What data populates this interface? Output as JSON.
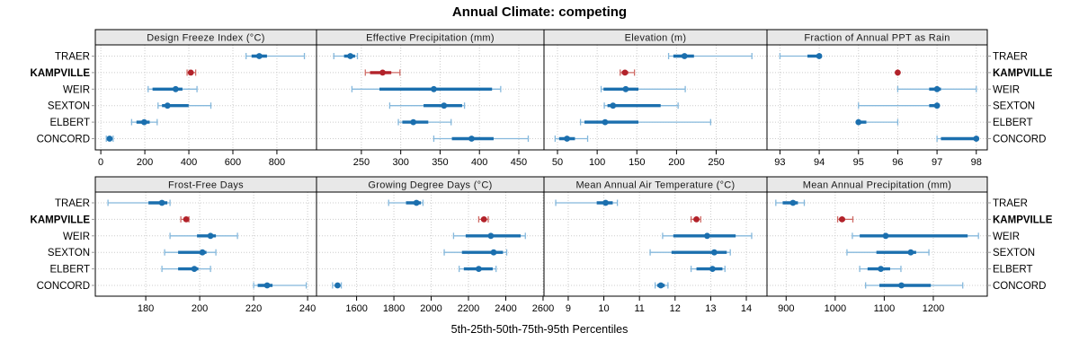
{
  "title": "Annual Climate: competing",
  "caption": "5th-25th-50th-75th-95th Percentiles",
  "percentile_labels": [
    "5th",
    "25th",
    "50th",
    "75th",
    "95th"
  ],
  "stations": [
    {
      "label": "TRAER",
      "highlight": false
    },
    {
      "label": "KAMPVILLE",
      "highlight": true
    },
    {
      "label": "WEIR",
      "highlight": false
    },
    {
      "label": "SEXTON",
      "highlight": false
    },
    {
      "label": "ELBERT",
      "highlight": false
    },
    {
      "label": "CONCORD",
      "highlight": false
    }
  ],
  "colors": {
    "normal": "#1b6fae",
    "normal_light": "#85b8dc",
    "highlight": "#b2222a",
    "highlight_light": "#cf6b66",
    "strip_bg": "#e8e8e8",
    "grid": "#cccccc",
    "border": "#000000"
  },
  "chart_data": [
    {
      "id": "design-freeze-index",
      "type": "scatter",
      "style": "percentile-intervals",
      "title": "Design Freeze Index (°C)",
      "row": 0,
      "col": 0,
      "xlim": [
        -25,
        980
      ],
      "ticks": [
        0,
        200,
        400,
        600,
        800
      ],
      "series": [
        {
          "name": "TRAER",
          "values": [
            660,
            685,
            720,
            755,
            925
          ]
        },
        {
          "name": "KAMPVILLE",
          "values": [
            392,
            400,
            409,
            419,
            431
          ]
        },
        {
          "name": "WEIR",
          "values": [
            215,
            235,
            340,
            371,
            437
          ]
        },
        {
          "name": "SEXTON",
          "values": [
            260,
            278,
            303,
            399,
            500
          ]
        },
        {
          "name": "ELBERT",
          "values": [
            140,
            162,
            197,
            222,
            256
          ]
        },
        {
          "name": "CONCORD",
          "values": [
            25,
            33,
            40,
            48,
            56
          ]
        }
      ]
    },
    {
      "id": "effective-precipitation",
      "type": "scatter",
      "style": "percentile-intervals",
      "title": "Effective Precipitation (mm)",
      "row": 0,
      "col": 1,
      "xlim": [
        193,
        482
      ],
      "ticks": [
        250,
        300,
        350,
        400,
        450
      ],
      "series": [
        {
          "name": "TRAER",
          "values": [
            215,
            228,
            236,
            242,
            245
          ]
        },
        {
          "name": "KAMPVILLE",
          "values": [
            255,
            261,
            277,
            288,
            299
          ]
        },
        {
          "name": "WEIR",
          "values": [
            238,
            273,
            342,
            416,
            427
          ]
        },
        {
          "name": "SEXTON",
          "values": [
            286,
            329,
            355,
            378,
            381
          ]
        },
        {
          "name": "ELBERT",
          "values": [
            297,
            302,
            316,
            335,
            364
          ]
        },
        {
          "name": "CONCORD",
          "values": [
            342,
            365,
            390,
            418,
            462
          ]
        }
      ]
    },
    {
      "id": "elevation",
      "type": "scatter",
      "style": "percentile-intervals",
      "title": "Elevation (m)",
      "row": 0,
      "col": 2,
      "xlim": [
        33,
        314
      ],
      "ticks": [
        50,
        100,
        150,
        200,
        250
      ],
      "series": [
        {
          "name": "TRAER",
          "values": [
            190,
            196,
            210,
            222,
            295
          ]
        },
        {
          "name": "KAMPVILLE",
          "values": [
            129,
            131,
            135,
            139,
            147
          ]
        },
        {
          "name": "WEIR",
          "values": [
            105,
            108,
            136,
            152,
            211
          ]
        },
        {
          "name": "SEXTON",
          "values": [
            109,
            113,
            120,
            180,
            202
          ]
        },
        {
          "name": "ELBERT",
          "values": [
            79,
            84,
            110,
            152,
            243
          ]
        },
        {
          "name": "CONCORD",
          "values": [
            47,
            52,
            62,
            72,
            88
          ]
        }
      ]
    },
    {
      "id": "fraction-annual-ppt-rain",
      "type": "scatter",
      "style": "percentile-intervals",
      "title": "Fraction of Annual PPT as Rain",
      "row": 0,
      "col": 3,
      "xlim": [
        92.67,
        98.28
      ],
      "ticks": [
        93,
        94,
        95,
        96,
        97,
        98
      ],
      "series": [
        {
          "name": "TRAER",
          "values": [
            93,
            93.7,
            94,
            94,
            94
          ]
        },
        {
          "name": "KAMPVILLE",
          "values": [
            96,
            96,
            96,
            96,
            96
          ]
        },
        {
          "name": "WEIR",
          "values": [
            96,
            96.8,
            97,
            97.1,
            98
          ]
        },
        {
          "name": "SEXTON",
          "values": [
            95,
            96.8,
            97,
            97,
            97
          ]
        },
        {
          "name": "ELBERT",
          "values": [
            95,
            95,
            95,
            95.2,
            96
          ]
        },
        {
          "name": "CONCORD",
          "values": [
            97,
            97.1,
            98,
            98,
            98
          ]
        }
      ]
    },
    {
      "id": "frost-free-days",
      "type": "scatter",
      "style": "percentile-intervals",
      "title": "Frost-Free Days",
      "row": 1,
      "col": 0,
      "xlim": [
        161.3,
        243.3
      ],
      "ticks": [
        180,
        200,
        220,
        240
      ],
      "series": [
        {
          "name": "TRAER",
          "values": [
            166,
            181,
            186,
            188,
            189
          ]
        },
        {
          "name": "KAMPVILLE",
          "values": [
            193,
            194,
            195,
            195.5,
            196
          ]
        },
        {
          "name": "WEIR",
          "values": [
            189,
            199,
            204,
            206,
            214
          ]
        },
        {
          "name": "SEXTON",
          "values": [
            187,
            192,
            201,
            202.5,
            206
          ]
        },
        {
          "name": "ELBERT",
          "values": [
            186,
            192,
            198,
            199.5,
            204
          ]
        },
        {
          "name": "CONCORD",
          "values": [
            220,
            221.5,
            225,
            227,
            239.5
          ]
        }
      ]
    },
    {
      "id": "growing-degree-days",
      "type": "scatter",
      "style": "percentile-intervals",
      "title": "Growing Degree Days (°C)",
      "row": 1,
      "col": 1,
      "xlim": [
        1385,
        2605
      ],
      "ticks": [
        1600,
        1800,
        2000,
        2200,
        2400,
        2600
      ],
      "series": [
        {
          "name": "TRAER",
          "values": [
            1772,
            1865,
            1921,
            1945,
            1956
          ]
        },
        {
          "name": "KAMPVILLE",
          "values": [
            2255,
            2268,
            2283,
            2295,
            2306
          ]
        },
        {
          "name": "WEIR",
          "values": [
            2120,
            2185,
            2320,
            2480,
            2505
          ]
        },
        {
          "name": "SEXTON",
          "values": [
            2070,
            2165,
            2335,
            2385,
            2405
          ]
        },
        {
          "name": "ELBERT",
          "values": [
            2150,
            2175,
            2255,
            2330,
            2348
          ]
        },
        {
          "name": "CONCORD",
          "values": [
            1471,
            1485,
            1498,
            1508,
            1518
          ]
        }
      ]
    },
    {
      "id": "mean-annual-air-temperature",
      "type": "scatter",
      "style": "percentile-intervals",
      "title": "Mean Annual Air Temperature (°C)",
      "row": 1,
      "col": 2,
      "xlim": [
        8.32,
        14.58
      ],
      "ticks": [
        9,
        10,
        11,
        12,
        13,
        14
      ],
      "series": [
        {
          "name": "TRAER",
          "values": [
            8.65,
            9.8,
            10.05,
            10.25,
            10.38
          ]
        },
        {
          "name": "KAMPVILLE",
          "values": [
            12.45,
            12.52,
            12.6,
            12.65,
            12.72
          ]
        },
        {
          "name": "WEIR",
          "values": [
            11.65,
            11.95,
            12.9,
            13.7,
            14.15
          ]
        },
        {
          "name": "SEXTON",
          "values": [
            11.3,
            11.9,
            13.1,
            13.45,
            13.55
          ]
        },
        {
          "name": "ELBERT",
          "values": [
            12.45,
            12.6,
            13.05,
            13.33,
            13.4
          ]
        },
        {
          "name": "CONCORD",
          "values": [
            11.44,
            11.5,
            11.6,
            11.71,
            11.8
          ]
        }
      ]
    },
    {
      "id": "mean-annual-precipitation",
      "type": "scatter",
      "style": "percentile-intervals",
      "title": "Mean Annual Precipitation (mm)",
      "row": 1,
      "col": 3,
      "xlim": [
        861,
        1310
      ],
      "ticks": [
        900,
        1000,
        1100,
        1200
      ],
      "series": [
        {
          "name": "TRAER",
          "values": [
            879,
            893,
            914,
            924,
            937
          ]
        },
        {
          "name": "KAMPVILLE",
          "values": [
            1005,
            1008,
            1014,
            1020,
            1036
          ]
        },
        {
          "name": "WEIR",
          "values": [
            1035,
            1050,
            1103,
            1270,
            1292
          ]
        },
        {
          "name": "SEXTON",
          "values": [
            1024,
            1084,
            1154,
            1165,
            1191
          ]
        },
        {
          "name": "ELBERT",
          "values": [
            1050,
            1066,
            1093,
            1112,
            1134
          ]
        },
        {
          "name": "CONCORD",
          "values": [
            1062,
            1090,
            1135,
            1195,
            1260
          ]
        }
      ]
    }
  ]
}
